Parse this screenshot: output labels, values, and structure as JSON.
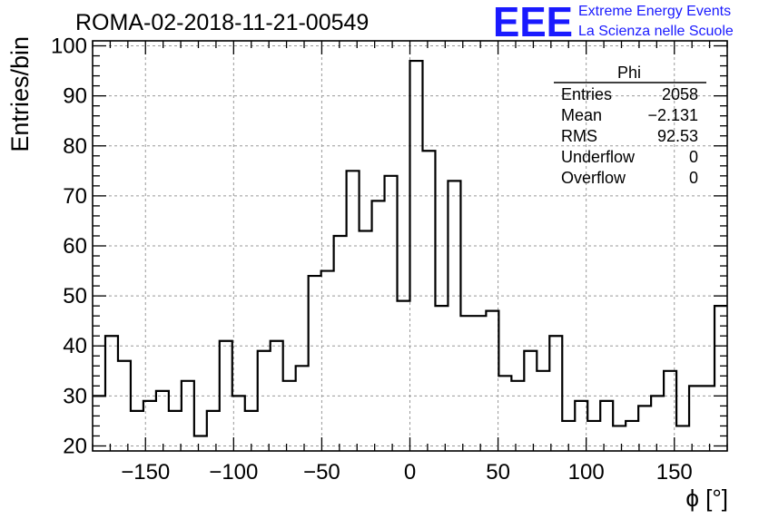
{
  "header": {
    "title": "ROMA-02-2018-11-21-00549",
    "logo_text": "EEE",
    "org_line1": "Extreme Energy Events",
    "org_line2": "La Scienza nelle Scuole",
    "brand_color": "#1a1aff"
  },
  "stats_box": {
    "name": "Phi",
    "rows": [
      {
        "label": "Entries",
        "value": "2058"
      },
      {
        "label": "Mean",
        "value": "−2.131"
      },
      {
        "label": "RMS",
        "value": "92.53"
      },
      {
        "label": "Underflow",
        "value": "0"
      },
      {
        "label": "Overflow",
        "value": "0"
      }
    ]
  },
  "chart_data": {
    "type": "bar",
    "style": "step-histogram",
    "title": "ROMA-02-2018-11-21-00549",
    "xlabel": "ϕ [°]",
    "ylabel": "Entries/bin",
    "xlim": [
      -180,
      180
    ],
    "ylim": [
      19,
      101
    ],
    "grid": true,
    "bin_width": 7.2,
    "x_ticks": [
      -150,
      -100,
      -50,
      0,
      50,
      100,
      150
    ],
    "x_tick_labels": [
      "−150",
      "−100",
      "−50",
      "0",
      "50",
      "100",
      "150"
    ],
    "y_ticks": [
      20,
      30,
      40,
      50,
      60,
      70,
      80,
      90,
      100
    ],
    "y_tick_labels": [
      "20",
      "30",
      "40",
      "50",
      "60",
      "70",
      "80",
      "90",
      "100"
    ],
    "bin_edges_start": -180,
    "values": [
      30,
      42,
      37,
      27,
      29,
      31,
      27,
      33,
      22,
      27,
      41,
      30,
      27,
      39,
      41,
      33,
      36,
      54,
      55,
      62,
      75,
      63,
      69,
      74,
      49,
      97,
      79,
      48,
      73,
      46,
      46,
      47,
      34,
      33,
      39,
      35,
      42,
      25,
      29,
      25,
      29,
      24,
      25,
      28,
      30,
      35,
      24,
      32,
      32,
      48
    ]
  }
}
